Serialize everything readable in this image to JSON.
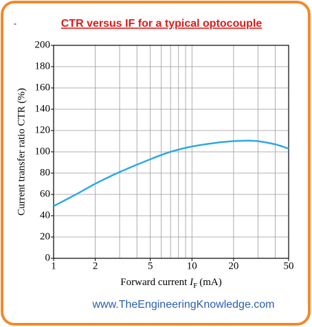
{
  "header": {
    "mark": "-",
    "title": "CTR versus IF for a typical optocouple"
  },
  "chart_data": {
    "type": "line",
    "ylabel": "Current transfer ratio CTR (%)",
    "xlabel": {
      "text": "Forward current",
      "var": "I",
      "sub": "F",
      "unit": "(mA)"
    },
    "x": [
      1,
      1.5,
      2,
      3,
      5,
      7,
      10,
      15,
      20,
      25,
      30,
      40,
      50
    ],
    "values": [
      49,
      61,
      70,
      81,
      93,
      100,
      105,
      108.5,
      110,
      110.5,
      110,
      107,
      103
    ],
    "color": "#2ea9e0",
    "xlim": [
      1,
      50
    ],
    "xticks": [
      1,
      2,
      5,
      10,
      20,
      50
    ],
    "xminor": [
      3,
      4,
      6,
      7,
      8,
      9,
      30,
      40
    ],
    "xscale": "log",
    "ylim": [
      0,
      200
    ],
    "yticks": [
      0,
      20,
      40,
      60,
      80,
      100,
      120,
      140,
      160,
      180,
      200
    ],
    "grid": true
  },
  "footer": {
    "url": "www.TheEngineeringKnowledge.com"
  }
}
